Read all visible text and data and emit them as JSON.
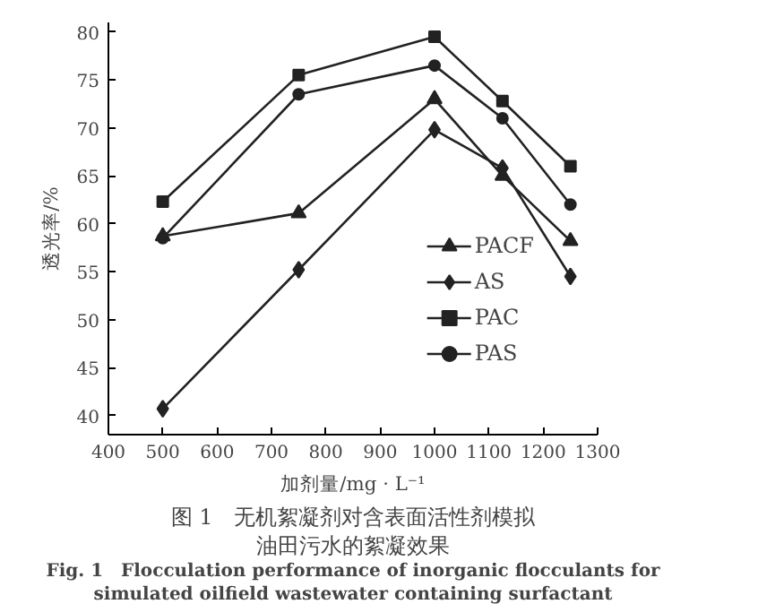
{
  "chart_data": {
    "type": "line",
    "title": "图 1　无机絮凝剂对含表面活性剂模拟油田污水的絮凝效果",
    "subtitle": "Fig. 1　Flocculation performance of inorganic flocculants for\nsimulated oilfield wastewater containing surfactant",
    "xlabel": "加剂量/mg · L⁻¹",
    "ylabel": "透光率/%",
    "xlim": [
      400,
      1300
    ],
    "xticks": [
      400,
      500,
      600,
      700,
      800,
      900,
      1000,
      1100,
      1200,
      1300
    ],
    "ylim": [
      38,
      81
    ],
    "yticks": [
      40,
      45,
      50,
      55,
      60,
      65,
      70,
      75,
      80
    ],
    "grid": false,
    "legend": "bottom right",
    "line_style": "solid",
    "series": [
      {
        "name": "PACF",
        "color": "#222222",
        "marker": "triangle",
        "x": [
          500,
          750,
          1000,
          1125,
          1250
        ],
        "values": [
          58.7,
          61.1,
          73.0,
          65.0,
          58.2
        ]
      },
      {
        "name": "AS",
        "color": "#222222",
        "marker": "diamond",
        "x": [
          500,
          750,
          1000,
          1125,
          1250
        ],
        "values": [
          40.7,
          55.2,
          69.8,
          65.8,
          54.5
        ]
      },
      {
        "name": "PAC",
        "color": "#222222",
        "marker": "square",
        "x": [
          500,
          750,
          1000,
          1125,
          1250
        ],
        "values": [
          62.3,
          75.5,
          79.5,
          72.8,
          66.0
        ]
      },
      {
        "name": "PAS",
        "color": "#222222",
        "marker": "circle",
        "x": [
          500,
          750,
          1000,
          1125,
          1250
        ],
        "values": [
          58.5,
          73.5,
          76.5,
          71.0,
          62.0
        ]
      }
    ]
  }
}
